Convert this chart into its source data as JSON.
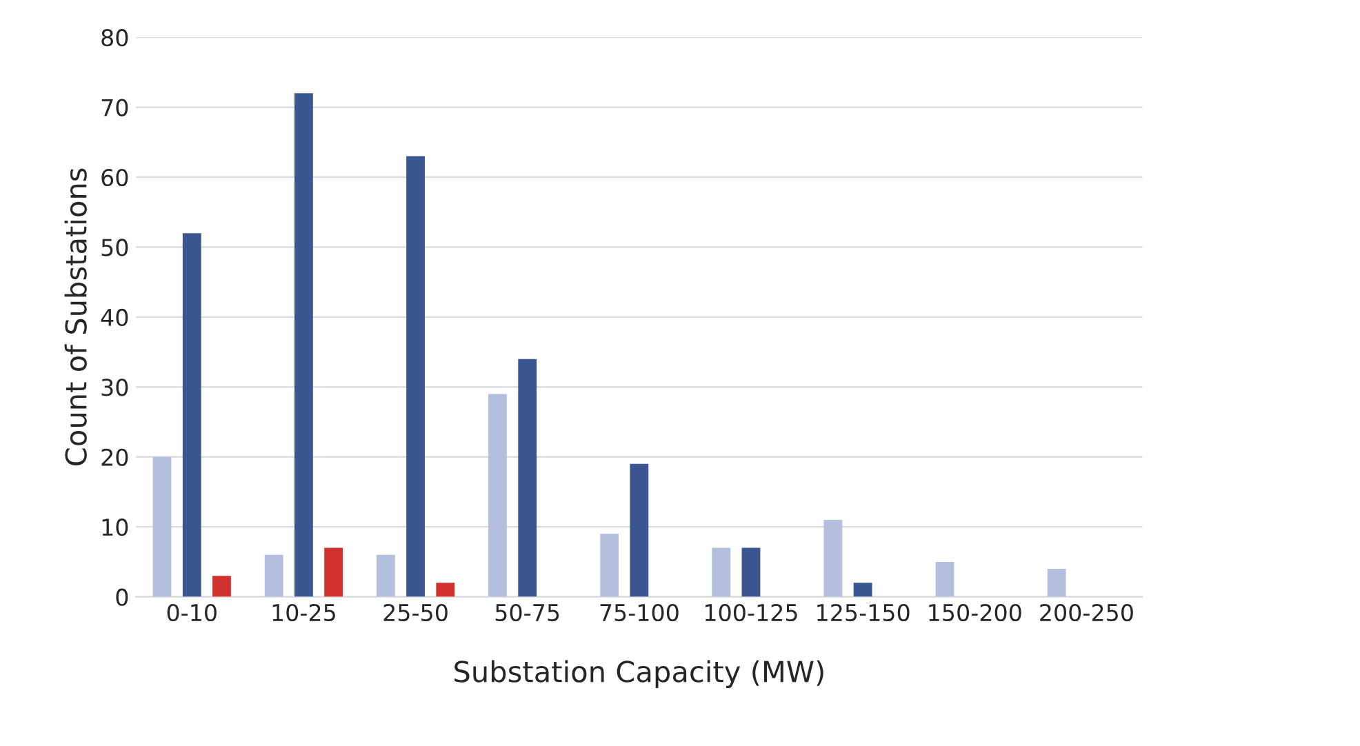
{
  "chart_data": {
    "type": "bar",
    "xlabel": "Substation Capacity (MW)",
    "ylabel": "Count of Substations",
    "categories": [
      "0-10",
      "10-25",
      "25-50",
      "50-75",
      "75-100",
      "100-125",
      "125-150",
      "150-200",
      "200-250"
    ],
    "series": [
      {
        "color": "#b4bedd",
        "values": [
          20,
          6,
          6,
          29,
          9,
          7,
          11,
          5,
          4
        ]
      },
      {
        "color": "#3b5590",
        "values": [
          52,
          72,
          63,
          34,
          19,
          7,
          2,
          null,
          null
        ]
      },
      {
        "color": "#d0312d",
        "values": [
          3,
          7,
          2,
          null,
          null,
          null,
          null,
          null,
          null
        ]
      }
    ],
    "ylim": [
      0,
      80
    ],
    "yticks": [
      0,
      10,
      20,
      30,
      40,
      50,
      60,
      70,
      80
    ],
    "grid": "y"
  }
}
